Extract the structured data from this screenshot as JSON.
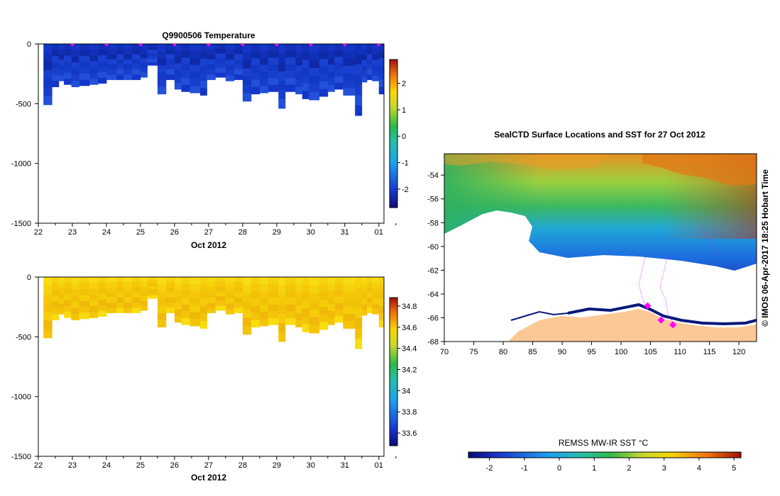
{
  "temperature_panel": {
    "title": "Q9900506  Temperature",
    "xlabel": "Oct 2012"
  },
  "salinity_panel": {
    "title": "",
    "xlabel": "Oct 2012"
  },
  "map_panel": {
    "title": "SealCTD Surface Locations and SST for 27 Oct 2012",
    "credit": "© IMOS 06-Apr-2017 18:25 Hobart Time"
  },
  "sst_colorbar": {
    "label": "REMSS MW-IR SST °C",
    "ticks": [
      "-2",
      "-1",
      "0",
      "1",
      "2",
      "3",
      "4",
      "5"
    ]
  },
  "colors": {
    "land": "#fbc896",
    "ice_edge": "#06187a",
    "track": "#ff00ff"
  },
  "chart_data": [
    {
      "type": "heatmap",
      "name": "temperature-section",
      "title": "Q9900506  Temperature",
      "xlabel": "Oct 2012",
      "ylabel": "",
      "xlim": [
        22.0,
        32.15
      ],
      "ylim": [
        -1500,
        0
      ],
      "x_tick_labels": [
        "22",
        "23",
        "24",
        "25",
        "26",
        "27",
        "28",
        "29",
        "30",
        "31",
        "01"
      ],
      "y_tick_values": [
        0,
        -500,
        -1000,
        -1500
      ],
      "y_tick_labels": [
        "0",
        "-500",
        "-1000",
        "-1500"
      ],
      "profile_markers_at_day": [
        23,
        24,
        25,
        26,
        27,
        28,
        29,
        30,
        31,
        32
      ],
      "profile_start_day": [
        22.15,
        22.4,
        22.6,
        22.75,
        22.97,
        23.2,
        23.5,
        23.75,
        24.0,
        24.3,
        24.5,
        24.75,
        25.0,
        25.2,
        25.5,
        25.75,
        26.0,
        26.2,
        26.45,
        26.75,
        26.95,
        27.2,
        27.5,
        27.75,
        28.0,
        28.25,
        28.5,
        28.75,
        29.05,
        29.25,
        29.55,
        29.75,
        29.95,
        30.25,
        30.5,
        30.7,
        30.95,
        31.3,
        31.5,
        31.65,
        31.8,
        32.0
      ],
      "profile_end_day": 32.15,
      "profile_max_depth_m": [
        -510,
        -360,
        -310,
        -340,
        -360,
        -350,
        -340,
        -330,
        -300,
        -300,
        -300,
        -300,
        -280,
        -180,
        -420,
        -300,
        -380,
        -400,
        -410,
        -430,
        -300,
        -280,
        -310,
        -300,
        -480,
        -420,
        -410,
        -400,
        -540,
        -400,
        -420,
        -460,
        -470,
        -440,
        -400,
        -380,
        -430,
        -600,
        -320,
        -300,
        -310,
        -420
      ],
      "colorbar": {
        "min": -2.7,
        "max": 2.9,
        "ticks": [
          "-2",
          "-1",
          "0",
          "1",
          "2"
        ],
        "tick_values": [
          -2,
          -1,
          0,
          1,
          2
        ]
      },
      "typical_values_degC": {
        "near_surface": -1.8,
        "deep": -1.2
      }
    },
    {
      "type": "heatmap",
      "name": "salinity-section",
      "title": "",
      "xlabel": "Oct 2012",
      "ylabel": "",
      "xlim": [
        22.0,
        32.15
      ],
      "ylim": [
        -1500,
        0
      ],
      "x_tick_labels": [
        "22",
        "23",
        "24",
        "25",
        "26",
        "27",
        "28",
        "29",
        "30",
        "31",
        "01"
      ],
      "y_tick_values": [
        0,
        -500,
        -1000,
        -1500
      ],
      "y_tick_labels": [
        "0",
        "-500",
        "-1000",
        "-1500"
      ],
      "colorbar": {
        "min": 33.48,
        "max": 34.88,
        "ticks": [
          "33.6",
          "33.8",
          "34",
          "34.2",
          "34.4",
          "34.6",
          "34.8"
        ],
        "tick_values": [
          33.6,
          33.8,
          34.0,
          34.2,
          34.4,
          34.6,
          34.8
        ]
      },
      "typical_values": {
        "near_surface": 34.45,
        "deep": 34.62
      }
    },
    {
      "type": "heatmap",
      "name": "sst-map",
      "title": "SealCTD Surface Locations and SST for 27 Oct 2012",
      "xlabel": "",
      "ylabel": "",
      "xlim": [
        70,
        123
      ],
      "ylim": [
        -68,
        -52.2
      ],
      "x_tick_values": [
        70,
        75,
        80,
        85,
        90,
        95,
        100,
        105,
        110,
        115,
        120
      ],
      "x_tick_labels": [
        "70",
        "75",
        "80",
        "85",
        "90",
        "95",
        "100",
        "105",
        "110",
        "115",
        "120"
      ],
      "y_tick_values": [
        -54,
        -56,
        -58,
        -60,
        -62,
        -64,
        -66,
        -68
      ],
      "y_tick_labels": [
        "-54",
        "-56",
        "-58",
        "-60",
        "-62",
        "-64",
        "-66",
        "-68"
      ],
      "colorbar": {
        "label": "REMSS MW-IR SST °C",
        "min": -2.6,
        "max": 5.2,
        "tick_values": [
          -2,
          -1,
          0,
          1,
          2,
          3,
          4,
          5
        ],
        "ticks": [
          "-2",
          "-1",
          "0",
          "1",
          "2",
          "3",
          "4",
          "5"
        ]
      },
      "seal_surface_locations": [
        {
          "lon": 104.5,
          "lat": -65.0
        },
        {
          "lon": 106.8,
          "lat": -66.2
        },
        {
          "lon": 108.8,
          "lat": -66.6
        }
      ]
    }
  ]
}
